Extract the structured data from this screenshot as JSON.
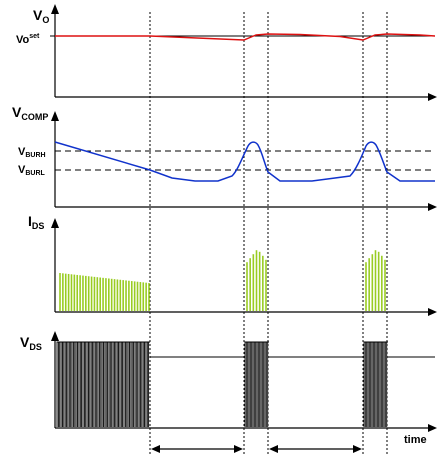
{
  "panels": {
    "vo": {
      "label_main": "V",
      "label_sub": "O",
      "set_main": "Vo",
      "set_sup": "set"
    },
    "vcomp": {
      "label_main": "V",
      "label_sub": "COMP",
      "burh_main": "V",
      "burh_sub": "BURH",
      "burl_main": "V",
      "burl_sub": "BURL"
    },
    "ids": {
      "label_main": "I",
      "label_sub": "DS"
    },
    "vds": {
      "label_main": "V",
      "label_sub": "DS"
    }
  },
  "axis": {
    "time_label": "time"
  },
  "colors": {
    "vo_trace": "#dd1111",
    "vcomp_trace": "#1133cc",
    "ids_pulses": "#99cc22",
    "vds_pulses": "#000000",
    "axes": "#000000",
    "guides": "#000000"
  }
}
